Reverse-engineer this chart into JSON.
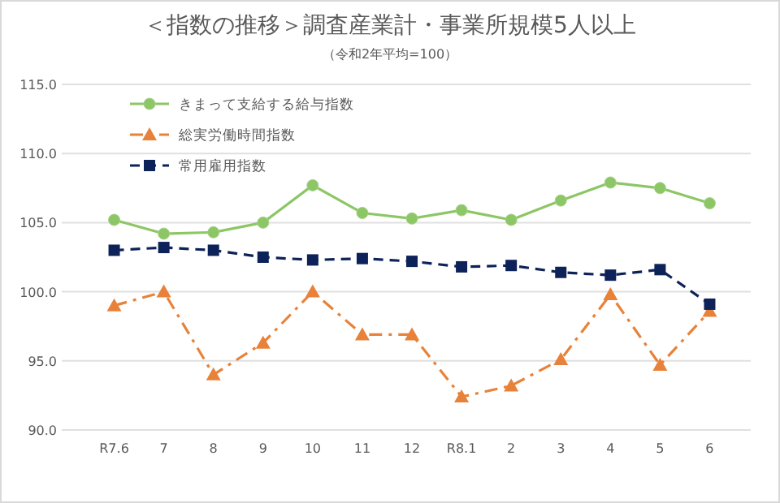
{
  "chart_data": {
    "type": "line",
    "title": "＜指数の推移＞調査産業計・事業所規模5人以上",
    "subtitle": "（令和2年平均=100）",
    "categories": [
      "R7.6",
      "7",
      "8",
      "9",
      "10",
      "11",
      "12",
      "R8.1",
      "2",
      "3",
      "4",
      "5",
      "6"
    ],
    "ylim": [
      90,
      115
    ],
    "yticks": [
      {
        "value": 90,
        "label": "90.0"
      },
      {
        "value": 95,
        "label": "95.0"
      },
      {
        "value": 100,
        "label": "100.0"
      },
      {
        "value": 105,
        "label": "105.0"
      },
      {
        "value": 110,
        "label": "110.0"
      },
      {
        "value": 115,
        "label": "115.0"
      }
    ],
    "grid": "y",
    "legend": "top left",
    "series": [
      {
        "name": "きまって支給する給与指数",
        "color": "#8cc665",
        "marker": "circle",
        "line_style": "solid",
        "values": [
          105.2,
          104.2,
          104.3,
          105.0,
          107.7,
          105.7,
          105.3,
          105.9,
          105.2,
          106.6,
          107.9,
          107.5,
          106.4
        ]
      },
      {
        "name": "総実労働時間指数",
        "color": "#e8823a",
        "marker": "triangle",
        "line_style": "dashdot",
        "values": [
          99.0,
          100.0,
          94.0,
          96.3,
          100.0,
          96.9,
          96.9,
          92.4,
          93.2,
          95.1,
          99.8,
          94.7,
          98.6
        ]
      },
      {
        "name": "常用雇用指数",
        "color": "#0d2259",
        "marker": "square",
        "line_style": "dashed",
        "values": [
          103.0,
          103.2,
          103.0,
          102.5,
          102.3,
          102.4,
          102.2,
          101.8,
          101.9,
          101.4,
          101.2,
          101.6,
          99.1
        ]
      }
    ]
  }
}
